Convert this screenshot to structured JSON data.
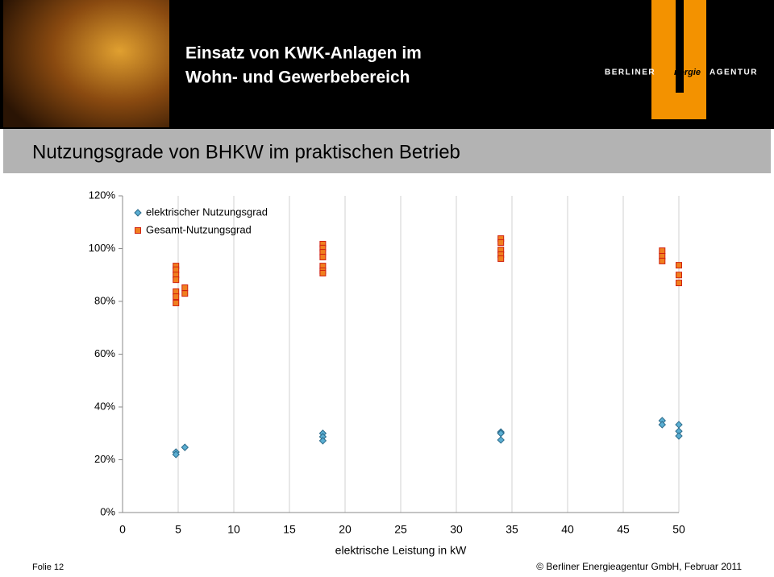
{
  "slide": {
    "title_lines": [
      "Einsatz von KWK-Anlagen im",
      "Wohn- und Gewerbebereich"
    ],
    "heading": "Nutzungsgrade von BHKW im praktischen Betrieb",
    "logo": [
      "BERLINER",
      "nergie",
      "AGENTUR"
    ],
    "footer_left": "Folie 12",
    "footer_right": "© Berliner Energieagentur GmbH, Februar 2011"
  },
  "chart_data": {
    "type": "scatter",
    "x_label": "elektrische Leistung in kW",
    "xlim": [
      0,
      50
    ],
    "xticks": [
      0,
      5,
      10,
      15,
      20,
      25,
      30,
      35,
      40,
      45,
      50
    ],
    "ylim": [
      0,
      120
    ],
    "yticks": [
      {
        "value": 0,
        "label": "0%"
      },
      {
        "value": 20,
        "label": "20%"
      },
      {
        "value": 40,
        "label": "40%"
      },
      {
        "value": 60,
        "label": "60%"
      },
      {
        "value": 80,
        "label": "80%"
      },
      {
        "value": 100,
        "label": "100%"
      },
      {
        "value": 120,
        "label": "120%"
      }
    ],
    "grid": "x",
    "legend": "top-left",
    "series": [
      {
        "name": "elektrischer Nutzungsgrad",
        "color": "#5aaed2",
        "marker": "diamond",
        "x": [
          4.8,
          4.8,
          5.6,
          18,
          18,
          18,
          34,
          34,
          34,
          48.5,
          48.5,
          50,
          50,
          50
        ],
        "values": [
          22.9,
          22,
          24.7,
          30,
          28.7,
          27.2,
          30.5,
          30,
          27.5,
          34.8,
          33.3,
          33.3,
          30.8,
          29
        ]
      },
      {
        "name": "Gesamt-Nutzungsgrad",
        "color": "#f07f1e",
        "marker": "square",
        "x": [
          4.8,
          4.8,
          4.8,
          4.8,
          4.8,
          4.8,
          4.8,
          5.6,
          5.6,
          18,
          18,
          18,
          18,
          18,
          18,
          18,
          34,
          34,
          34,
          34,
          34,
          48.5,
          48.5,
          48.5,
          50,
          50,
          50
        ],
        "values": [
          93.4,
          92,
          90,
          88.2,
          83.7,
          81.8,
          79.4,
          85.2,
          83,
          101.7,
          100.2,
          98.6,
          96.8,
          93.4,
          91.6,
          90.7,
          103.8,
          102.3,
          99.5,
          97.7,
          96.2,
          99.2,
          97.1,
          95.3,
          93.7,
          90,
          87
        ]
      }
    ]
  }
}
